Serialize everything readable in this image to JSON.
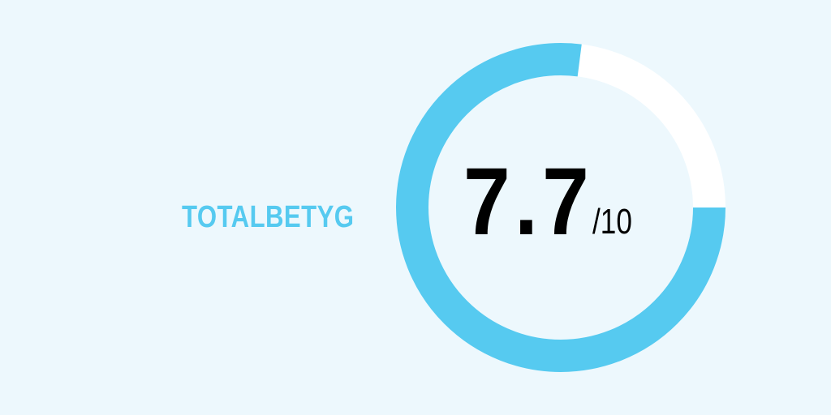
{
  "rating": {
    "label": "TOTALBETYG",
    "score": "7.7",
    "max": "/10",
    "value": 7.7,
    "out_of": 10
  },
  "colors": {
    "background": "#edf8fd",
    "accent": "#56caf0",
    "track": "#ffffff",
    "score_text": "#000000"
  }
}
